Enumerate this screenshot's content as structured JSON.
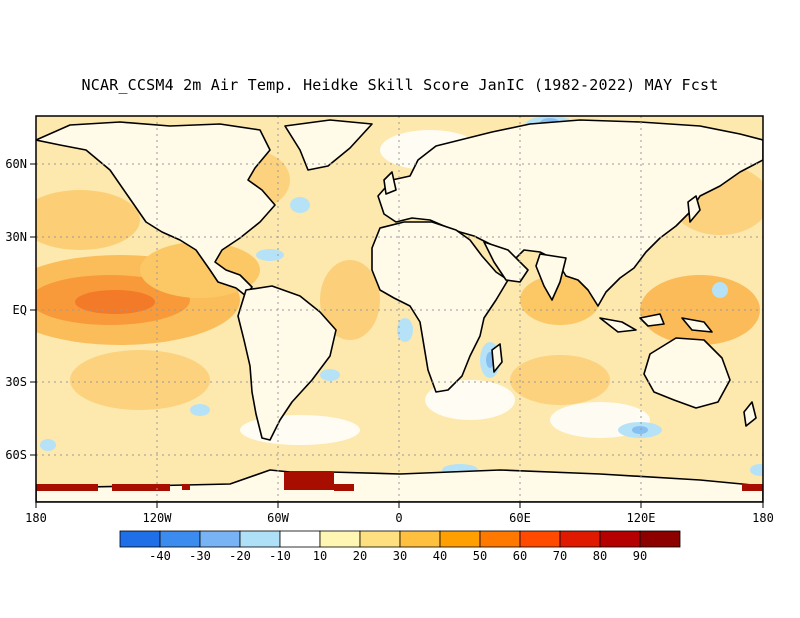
{
  "title": "NCAR_CCSM4 2m Air Temp. Heidke Skill Score JanIC (1982-2022) MAY Fcst",
  "lat_labels": [
    "60N",
    "30N",
    "EQ",
    "30S",
    "60S"
  ],
  "lon_labels": [
    "180",
    "120W",
    "60W",
    "0",
    "60E",
    "120E",
    "180"
  ],
  "colorbar": {
    "labels": [
      "-40",
      "-30",
      "-20",
      "-10",
      "10",
      "20",
      "30",
      "40",
      "50",
      "60",
      "70",
      "80",
      "90"
    ],
    "colors": [
      "#1e6fe8",
      "#3c8cf0",
      "#78b4f5",
      "#aee0f8",
      "#ffffff",
      "#fff6b4",
      "#ffe080",
      "#ffc040",
      "#ffa000",
      "#ff7800",
      "#ff4a00",
      "#e01a00",
      "#b40000",
      "#8c0000"
    ]
  },
  "map_colors": {
    "ocean_base": "#fde6a8",
    "land_base": "#ffffff",
    "coast": "#000000",
    "grid": "#9a9a9a"
  }
}
